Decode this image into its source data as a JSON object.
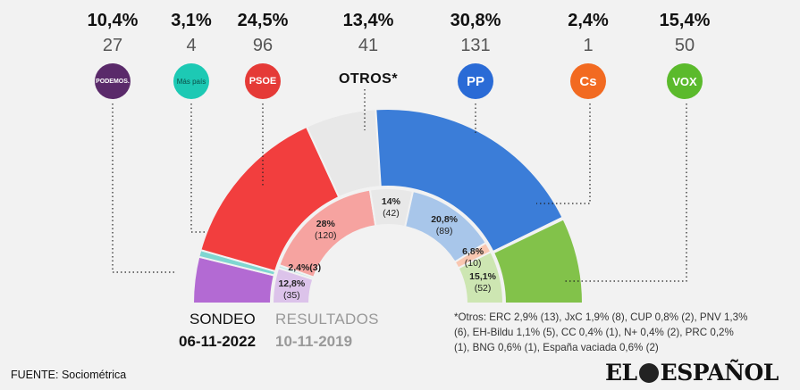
{
  "parties": [
    {
      "key": "podemos",
      "pct": "10,4%",
      "seats": "27",
      "logo_text": "PODEMOS.",
      "color": "#a94ec6",
      "icon": "podemos-logo-icon"
    },
    {
      "key": "mas-pais",
      "pct": "3,1%",
      "seats": "4",
      "logo_text": "Más país",
      "color": "#1dc9b4",
      "icon": "mas-pais-logo-icon"
    },
    {
      "key": "psoe",
      "pct": "24,5%",
      "seats": "96",
      "logo_text": "PSOE",
      "color": "#e53a37",
      "icon": "psoe-logo-icon"
    },
    {
      "key": "otros",
      "pct": "13,4%",
      "seats": "41",
      "label": "OTROS*"
    },
    {
      "key": "pp",
      "pct": "30,8%",
      "seats": "131",
      "logo_text": "PP",
      "color": "#2a6bd6",
      "icon": "pp-logo-icon"
    },
    {
      "key": "cs",
      "pct": "2,4%",
      "seats": "1",
      "logo_text": "Cs",
      "color": "#f26a21",
      "icon": "cs-logo-icon"
    },
    {
      "key": "vox",
      "pct": "15,4%",
      "seats": "50",
      "logo_text": "VOX",
      "color": "#5bba2c",
      "icon": "vox-logo-icon"
    }
  ],
  "chart_data": [
    {
      "type": "semicircle",
      "title": "SONDEO",
      "date": "06-11-2022",
      "series": [
        {
          "name": "Podemos",
          "value": 27,
          "color": "#b36ad3"
        },
        {
          "name": "Más País",
          "value": 4,
          "color": "#7fd6d1"
        },
        {
          "name": "PSOE",
          "value": 96,
          "color": "#f23e3e"
        },
        {
          "name": "Otros",
          "value": 41,
          "color": "#e8e8e8"
        },
        {
          "name": "PP",
          "value": 131,
          "color": "#3b7dd8"
        },
        {
          "name": "Cs",
          "value": 1,
          "color": "#f2916b"
        },
        {
          "name": "VOX",
          "value": 50,
          "color": "#82c24a"
        }
      ]
    },
    {
      "type": "semicircle",
      "title": "RESULTADOS",
      "date": "10-11-2019",
      "series": [
        {
          "name": "Podemos",
          "pct": "12,8%",
          "seats": "(35)",
          "value": 35,
          "color": "#dcc3ea"
        },
        {
          "name": "Más País",
          "pct": "2,4%",
          "seats": "(3)",
          "value": 3,
          "color": "#bfe9e7"
        },
        {
          "name": "PSOE",
          "pct": "28%",
          "seats": "(120)",
          "value": 120,
          "color": "#f6a3a0"
        },
        {
          "name": "Otros",
          "pct": "14%",
          "seats": "(42)",
          "value": 42,
          "color": "#e8e8e8"
        },
        {
          "name": "PP",
          "pct": "20,8%",
          "seats": "(89)",
          "value": 89,
          "color": "#a8c6ea"
        },
        {
          "name": "Cs",
          "pct": "6,8%",
          "seats": "(10)",
          "value": 10,
          "color": "#f9c7b1"
        },
        {
          "name": "VOX",
          "pct": "15,1%",
          "seats": "(52)",
          "value": 52,
          "color": "#cde6b2"
        }
      ]
    }
  ],
  "labels": {
    "sondeo": "SONDEO",
    "sondeo_date": "06-11-2022",
    "resultados": "RESULTADOS",
    "resultados_date": "10-11-2019",
    "note": "*Otros: ERC 2,9% (13), JxC 1,9% (8), CUP 0,8% (2), PNV 1,3% (6), EH-Bildu 1,1% (5), CC 0,4% (1), N+ 0,4% (2), PRC 0,2% (1), BNG 0,6% (1), España vaciada 0,6% (2)",
    "source": "FUENTE: Sociométrica",
    "brand_left": "EL",
    "brand_right": "ESPAÑOL"
  }
}
